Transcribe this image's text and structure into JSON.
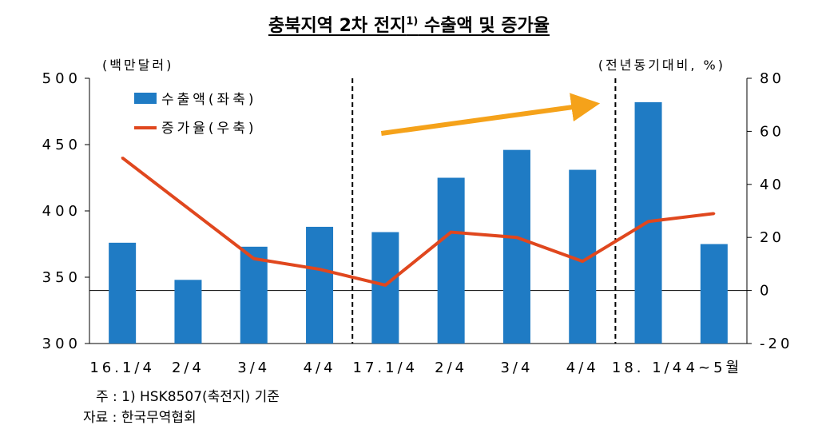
{
  "title": {
    "main_a": "충북지역 2차 전지",
    "sup": "1)",
    "main_b": " 수출액 및 증가율"
  },
  "units": {
    "left": "(백만달러)",
    "right": "(전년동기대비, %)"
  },
  "chart_data": {
    "type": "bar",
    "categories": [
      "16.1/4",
      "2/4",
      "3/4",
      "4/4",
      "17.1/4",
      "2/4",
      "3/4",
      "4/4",
      "18. 1/4",
      "4~5월"
    ],
    "series": [
      {
        "name": "수출액(좌축)",
        "type": "bar",
        "axis": "left",
        "values": [
          376,
          348,
          373,
          388,
          384,
          425,
          446,
          431,
          482,
          375
        ]
      },
      {
        "name": "증가율(우축)",
        "type": "line",
        "axis": "right",
        "values": [
          50,
          null,
          12,
          8,
          2,
          22,
          20,
          11,
          26,
          29
        ]
      }
    ],
    "left_axis": {
      "range": [
        300,
        500
      ],
      "ticks": [
        300,
        350,
        400,
        450,
        500
      ]
    },
    "right_axis": {
      "range": [
        -20,
        80
      ],
      "ticks": [
        -20,
        0,
        20,
        40,
        60,
        80
      ]
    },
    "reference_line": {
      "axis": "right",
      "value": 0
    },
    "period_dividers": [
      "17.1/4",
      "18. 1/4"
    ],
    "trend_arrow": {
      "from_category": "17.1/4",
      "to_category": "4/4",
      "direction": "up"
    },
    "grid": false,
    "legend_position": "top-left",
    "colors": {
      "bar": "#1f7bc4",
      "line": "#e0471e",
      "arrow": "#f5a21a"
    }
  },
  "footnotes": {
    "note": "주 : 1) HSK8507(축전지) 기준",
    "source": "자료 : 한국무역협회"
  }
}
